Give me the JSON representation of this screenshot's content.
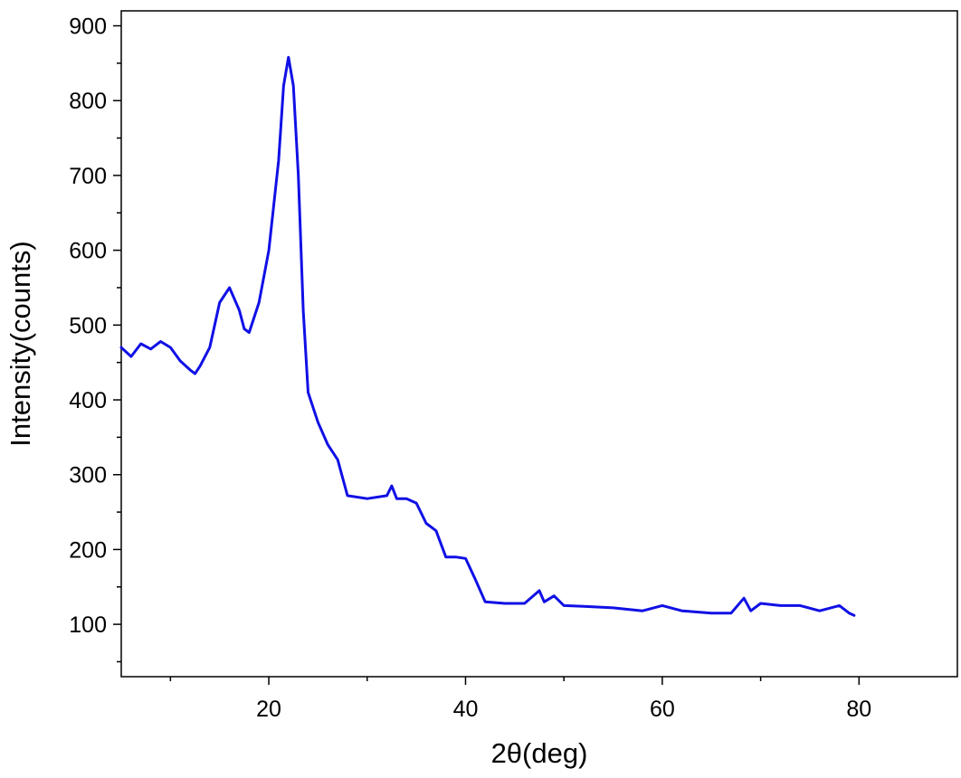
{
  "chart_data": {
    "type": "line",
    "title": "",
    "xlabel": "2θ(deg)",
    "ylabel": "Intensity(counts)",
    "xlim": [
      5,
      90
    ],
    "ylim": [
      30,
      920
    ],
    "x_ticks": [
      20,
      40,
      60,
      80
    ],
    "y_ticks": [
      100,
      200,
      300,
      400,
      500,
      600,
      700,
      800,
      900
    ],
    "grid": false,
    "legend": "none",
    "series": [
      {
        "color": "#1010e6",
        "points": [
          [
            5.0,
            470
          ],
          [
            6.0,
            458
          ],
          [
            7.0,
            475
          ],
          [
            8.0,
            468
          ],
          [
            9.0,
            478
          ],
          [
            10.0,
            470
          ],
          [
            11.0,
            452
          ],
          [
            12.0,
            440
          ],
          [
            12.5,
            435
          ],
          [
            13.0,
            445
          ],
          [
            14.0,
            470
          ],
          [
            15.0,
            530
          ],
          [
            16.0,
            550
          ],
          [
            17.0,
            520
          ],
          [
            17.5,
            495
          ],
          [
            18.0,
            490
          ],
          [
            19.0,
            530
          ],
          [
            20.0,
            600
          ],
          [
            21.0,
            720
          ],
          [
            21.5,
            820
          ],
          [
            22.0,
            858
          ],
          [
            22.5,
            820
          ],
          [
            23.0,
            700
          ],
          [
            23.5,
            520
          ],
          [
            24.0,
            410
          ],
          [
            25.0,
            370
          ],
          [
            26.0,
            340
          ],
          [
            27.0,
            320
          ],
          [
            28.0,
            272
          ],
          [
            30.0,
            268
          ],
          [
            32.0,
            272
          ],
          [
            32.5,
            285
          ],
          [
            33.0,
            268
          ],
          [
            34.0,
            268
          ],
          [
            35.0,
            262
          ],
          [
            36.0,
            235
          ],
          [
            37.0,
            225
          ],
          [
            38.0,
            190
          ],
          [
            39.0,
            190
          ],
          [
            40.0,
            188
          ],
          [
            41.0,
            160
          ],
          [
            42.0,
            130
          ],
          [
            44.0,
            128
          ],
          [
            46.0,
            128
          ],
          [
            47.5,
            145
          ],
          [
            48.0,
            130
          ],
          [
            49.0,
            138
          ],
          [
            50.0,
            125
          ],
          [
            52.0,
            124
          ],
          [
            55.0,
            122
          ],
          [
            58.0,
            118
          ],
          [
            60.0,
            125
          ],
          [
            62.0,
            118
          ],
          [
            65.0,
            115
          ],
          [
            67.0,
            115
          ],
          [
            68.3,
            135
          ],
          [
            69.0,
            118
          ],
          [
            70.0,
            128
          ],
          [
            72.0,
            125
          ],
          [
            74.0,
            125
          ],
          [
            76.0,
            118
          ],
          [
            78.0,
            125
          ],
          [
            79.0,
            115
          ],
          [
            79.5,
            112
          ]
        ]
      }
    ]
  }
}
